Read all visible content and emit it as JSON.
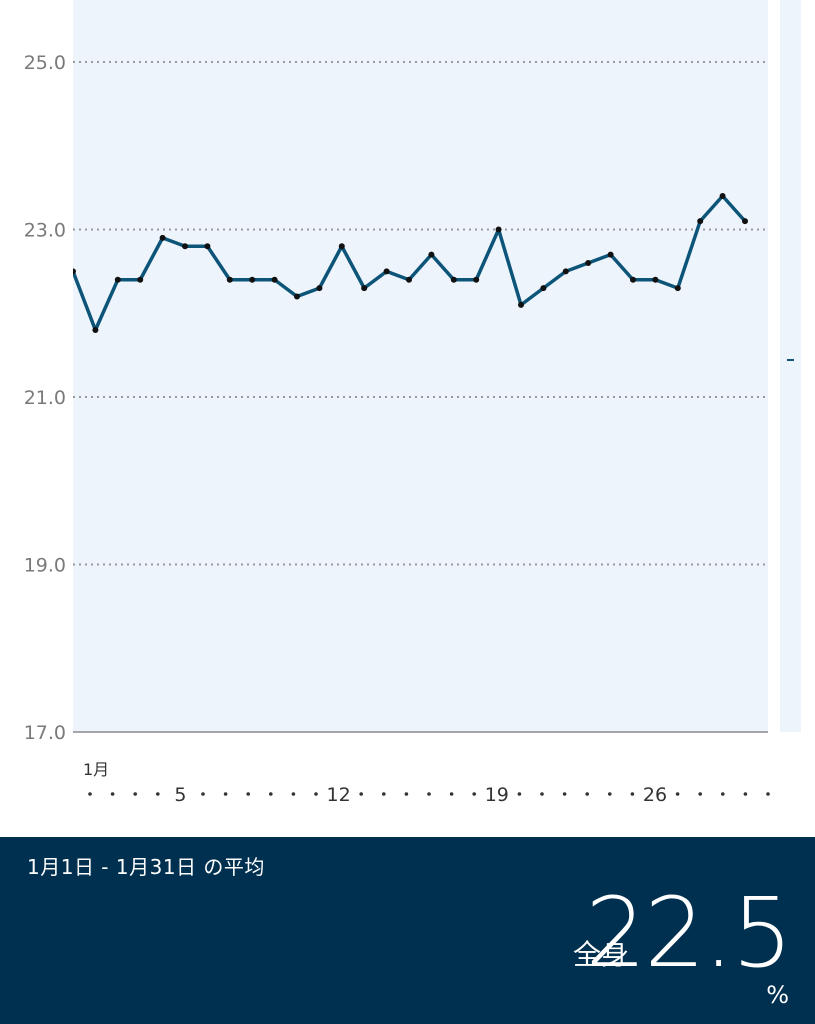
{
  "chart_data": {
    "type": "line",
    "title": "",
    "xlabel": "",
    "ylabel": "",
    "month_label": "1月",
    "x": [
      1,
      2,
      3,
      4,
      5,
      6,
      7,
      8,
      9,
      10,
      11,
      12,
      13,
      14,
      15,
      16,
      17,
      18,
      19,
      20,
      21,
      22,
      23,
      24,
      25,
      26,
      27,
      28,
      29,
      30,
      31
    ],
    "x_tick_labels": [
      "5",
      "12",
      "19",
      "26"
    ],
    "x_tick_values": [
      5,
      12,
      19,
      26
    ],
    "series": [
      {
        "values": [
          22.5,
          21.8,
          22.4,
          22.4,
          22.9,
          22.8,
          22.8,
          22.4,
          22.4,
          22.4,
          22.2,
          22.3,
          22.8,
          22.3,
          22.5,
          22.4,
          22.7,
          22.4,
          22.4,
          23.0,
          22.1,
          22.3,
          22.5,
          22.6,
          22.7,
          22.4,
          22.4,
          22.3,
          23.1,
          23.4,
          23.1
        ],
        "color": "#0c5478"
      }
    ],
    "ylim": [
      17.0,
      26.0
    ],
    "y_ticks": [
      "17.0",
      "19.0",
      "21.0",
      "23.0",
      "25.0"
    ],
    "grid": true,
    "plot_background": "#eef4fc"
  },
  "summary": {
    "range_text": "1月1日 - 1月31日 の平均",
    "label": "全身",
    "value": "22.5",
    "unit": "%",
    "background": "#00304f"
  }
}
